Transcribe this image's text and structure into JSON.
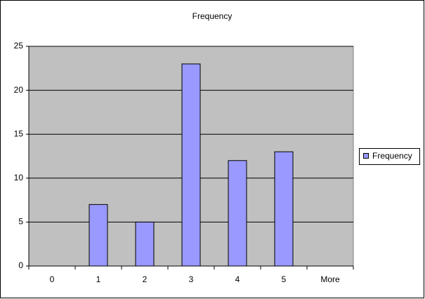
{
  "chart_data": {
    "type": "bar",
    "title": "Frequency",
    "categories": [
      "0",
      "1",
      "2",
      "3",
      "4",
      "5",
      "More"
    ],
    "series": [
      {
        "name": "Frequency",
        "color": "#9999ff",
        "values": [
          0,
          7,
          5,
          23,
          12,
          13,
          0
        ]
      }
    ],
    "ylim": [
      0,
      25
    ],
    "yticks": [
      0,
      5,
      10,
      15,
      20,
      25
    ],
    "grid": true,
    "legend": "right"
  }
}
